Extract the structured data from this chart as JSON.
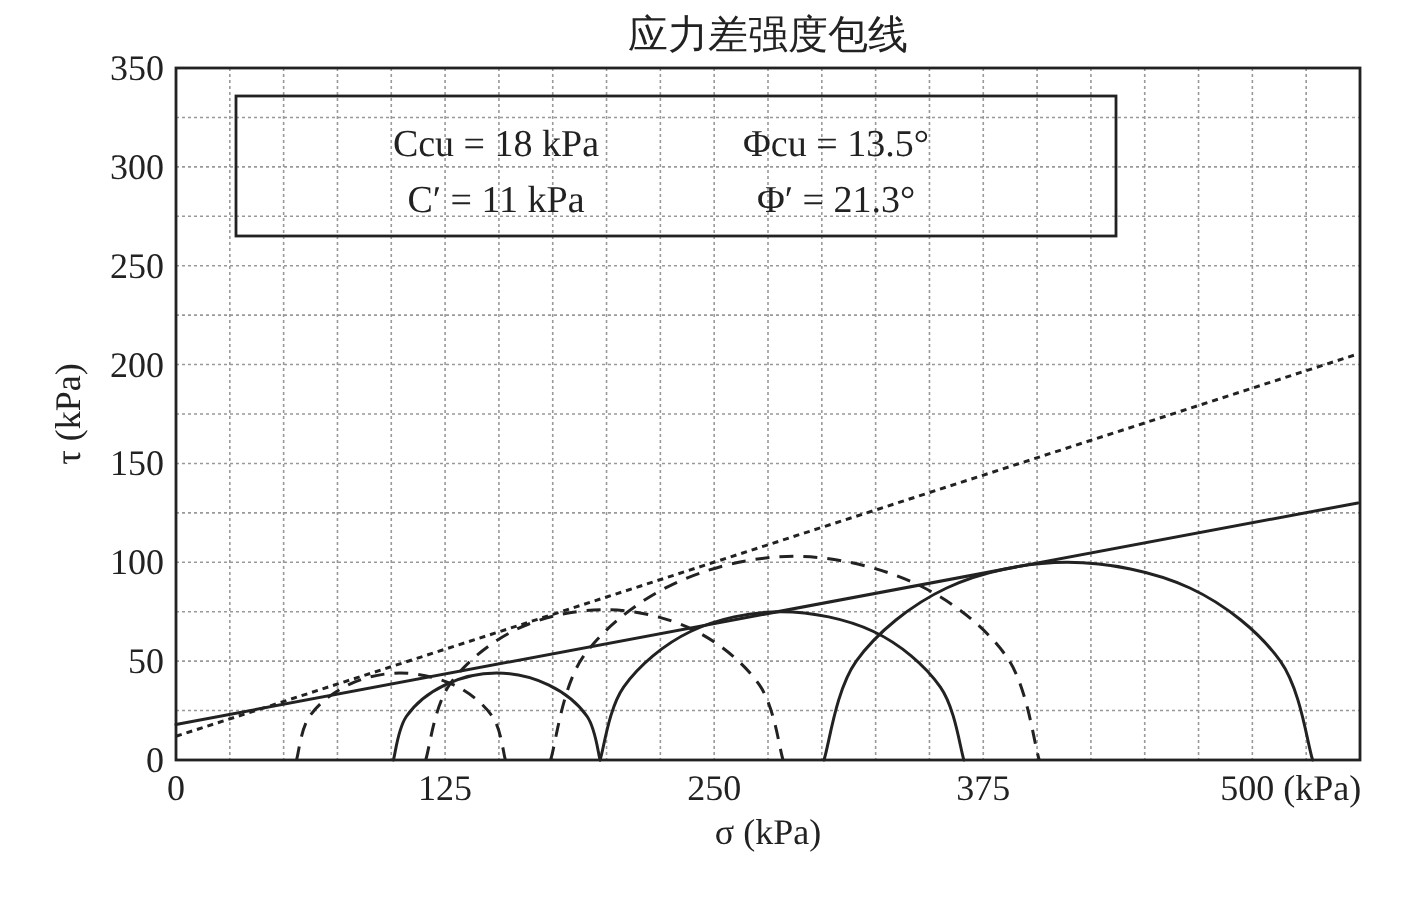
{
  "chart_data": {
    "type": "line",
    "title": "应力差强度包线",
    "xlabel": "σ (kPa)",
    "ylabel": "τ (kPa)",
    "xlim": [
      0,
      550
    ],
    "ylim": [
      0,
      350
    ],
    "xticks": [
      0,
      {
        "value": 25,
        "label": null
      },
      {
        "value": 50,
        "label": null
      },
      {
        "value": 75,
        "label": null
      },
      {
        "value": 100,
        "label": null
      },
      125,
      {
        "value": 150,
        "label": null
      },
      {
        "value": 175,
        "label": null
      },
      {
        "value": 200,
        "label": null
      },
      {
        "value": 225,
        "label": null
      },
      250,
      {
        "value": 275,
        "label": null
      },
      {
        "value": 300,
        "label": null
      },
      {
        "value": 325,
        "label": null
      },
      {
        "value": 350,
        "label": null
      },
      375,
      {
        "value": 400,
        "label": null
      },
      {
        "value": 425,
        "label": null
      },
      {
        "value": 450,
        "label": null
      },
      {
        "value": 475,
        "label": null
      },
      {
        "value": 500,
        "label": "500 (kPa)"
      },
      {
        "value": 525,
        "label": null
      }
    ],
    "yticks": [
      0,
      {
        "value": 25,
        "label": null
      },
      50,
      {
        "value": 75,
        "label": null
      },
      100,
      {
        "value": 125,
        "label": null
      },
      150,
      {
        "value": 175,
        "label": null
      },
      200,
      {
        "value": 225,
        "label": null
      },
      250,
      {
        "value": 275,
        "label": null
      },
      300,
      {
        "value": 325,
        "label": null
      },
      350
    ],
    "grid": true,
    "marker": "none",
    "annotations": [
      "Ccu = 18 kPa",
      "Φcu = 13.5°",
      "C′ = 11 kPa",
      "Φ′ = 21.3°"
    ],
    "series": [
      {
        "color": "#222222",
        "line_style": "solid",
        "x": [
          0,
          549
        ],
        "values": [
          18,
          130
        ]
      },
      {
        "color": "#222222",
        "line_style": "dotted",
        "x": [
          0,
          548
        ],
        "values": [
          12,
          205
        ]
      },
      {
        "color": "#222222",
        "line_style": "solid",
        "x": [
          101,
          107,
          125,
          149,
          173,
          191,
          197
        ],
        "values": [
          0,
          22,
          38,
          44,
          38,
          22,
          0
        ]
      },
      {
        "color": "#222222",
        "line_style": "solid",
        "x": [
          197,
          208,
          239,
          281,
          324,
          355,
          366
        ],
        "values": [
          0,
          37,
          65,
          75,
          65,
          37,
          0
        ]
      },
      {
        "color": "#222222",
        "line_style": "solid",
        "x": [
          301,
          316,
          358,
          414,
          471,
          513,
          528
        ],
        "values": [
          0,
          50,
          87,
          100,
          87,
          50,
          0
        ]
      },
      {
        "color": "#222222",
        "line_style": "dashed",
        "x": [
          56,
          62,
          80,
          104,
          129,
          147,
          153
        ],
        "values": [
          0,
          22,
          38,
          44,
          38,
          22,
          0
        ]
      },
      {
        "color": "#222222",
        "line_style": "dashed",
        "x": [
          116,
          127,
          158,
          199,
          240,
          271,
          282
        ],
        "values": [
          0,
          38,
          66,
          76,
          66,
          38,
          0
        ]
      },
      {
        "color": "#222222",
        "line_style": "dashed",
        "x": [
          174,
          189,
          231,
          287,
          344,
          386,
          401
        ],
        "values": [
          0,
          52,
          89,
          103,
          89,
          52,
          0
        ]
      }
    ]
  }
}
